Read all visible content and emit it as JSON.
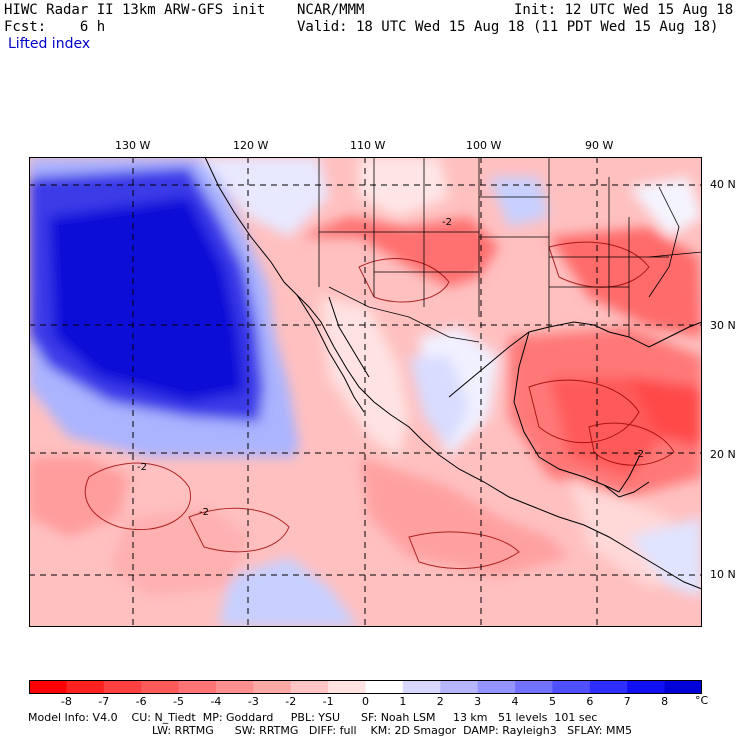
{
  "header": {
    "title_left": "HIWC Radar II 13km ARW-GFS init",
    "center": "NCAR/MMM",
    "init": "Init: 12 UTC Wed 15 Aug 18",
    "fcst": "Fcst:    6 h",
    "valid": "Valid: 18 UTC Wed 15 Aug 18 (11 PDT Wed 15 Aug 18)",
    "variable": "Lifted index"
  },
  "axes": {
    "lon_labels": [
      "130 W",
      "120 W",
      "110 W",
      "100 W",
      "90 W"
    ],
    "lat_labels": [
      "40 N",
      "30 N",
      "20 N",
      "10 N"
    ]
  },
  "colorbar": {
    "ticks": [
      "-8",
      "-7",
      "-6",
      "-5",
      "-4",
      "-3",
      "-2",
      "-1",
      "0",
      "1",
      "2",
      "3",
      "4",
      "5",
      "6",
      "7",
      "8"
    ],
    "unit": "°C",
    "colors": [
      "#ff0000",
      "#ff2020",
      "#ff4040",
      "#ff5a5a",
      "#ff7474",
      "#ff8e8e",
      "#ffa8a8",
      "#ffc4c4",
      "#ffe2e2",
      "#ffffff",
      "#d8d8ff",
      "#b6b6ff",
      "#9494ff",
      "#7272ff",
      "#5050ff",
      "#2e2eff",
      "#1010f2",
      "#0000d8"
    ]
  },
  "footer": {
    "line1": "Model Info: V4.0    CU: N_Tiedt  MP: Goddard     PBL: YSU      SF: Noah LSM     13 km   51 levels  101 sec",
    "line2": "LW: RRTMG      SW: RRTMG   DIFF: full    KM: 2D Smagor  DAMP: Rayleigh3   SFLAY: MM5"
  },
  "contour_labels": [
    "-2",
    "-2",
    "-2",
    "-2"
  ]
}
